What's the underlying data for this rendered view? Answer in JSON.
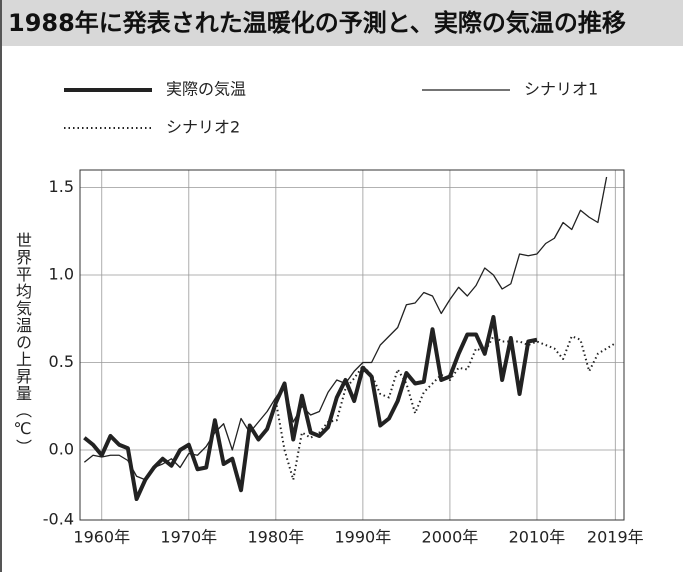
{
  "chart_data": {
    "type": "line",
    "title": "1988年に発表された温暖化の予測と、実際の気温の推移",
    "y_label": "世界平均気温の上昇量（℃）",
    "x": [
      1958,
      1959,
      1960,
      1961,
      1962,
      1963,
      1964,
      1965,
      1966,
      1967,
      1968,
      1969,
      1970,
      1971,
      1972,
      1973,
      1974,
      1975,
      1976,
      1977,
      1978,
      1979,
      1980,
      1981,
      1982,
      1983,
      1984,
      1985,
      1986,
      1987,
      1988,
      1989,
      1990,
      1991,
      1992,
      1993,
      1994,
      1995,
      1996,
      1997,
      1998,
      1999,
      2000,
      2001,
      2002,
      2003,
      2004,
      2005,
      2006,
      2007,
      2008,
      2009,
      2010,
      2011,
      2012,
      2013,
      2014,
      2015,
      2016,
      2017,
      2018,
      2019
    ],
    "series": [
      {
        "name": "実際の気温",
        "color": "#222222",
        "values": [
          0.07,
          0.03,
          -0.03,
          0.08,
          0.03,
          0.01,
          -0.28,
          -0.17,
          -0.1,
          -0.05,
          -0.09,
          0.0,
          0.03,
          -0.11,
          -0.1,
          0.17,
          -0.08,
          -0.05,
          -0.23,
          0.14,
          0.06,
          0.12,
          0.27,
          0.38,
          0.06,
          0.31,
          0.1,
          0.08,
          0.13,
          0.3,
          0.4,
          0.28,
          0.47,
          0.42,
          0.14,
          0.18,
          0.28,
          0.44,
          0.38,
          0.39,
          0.69,
          0.4,
          0.42,
          0.55,
          0.66,
          0.66,
          0.55,
          0.76,
          0.4,
          0.64,
          0.32,
          0.62,
          0.63,
          null,
          null,
          null,
          null,
          null,
          null,
          null,
          null,
          null
        ]
      },
      {
        "name": "シナリオ1",
        "color": "#222222",
        "values": [
          -0.07,
          -0.03,
          -0.04,
          -0.03,
          -0.03,
          -0.06,
          -0.15,
          -0.17,
          -0.1,
          -0.08,
          -0.05,
          -0.1,
          -0.02,
          -0.03,
          0.02,
          0.1,
          0.15,
          0.0,
          0.18,
          0.1,
          0.16,
          0.22,
          0.3,
          0.37,
          0.16,
          0.25,
          0.2,
          0.22,
          0.33,
          0.4,
          0.38,
          0.45,
          0.5,
          0.5,
          0.6,
          0.65,
          0.7,
          0.83,
          0.84,
          0.9,
          0.88,
          0.78,
          0.86,
          0.93,
          0.88,
          0.94,
          1.04,
          1.0,
          0.92,
          0.95,
          1.12,
          1.11,
          1.12,
          1.18,
          1.21,
          1.3,
          1.26,
          1.37,
          1.33,
          1.3,
          1.56,
          null
        ]
      },
      {
        "name": "シナリオ2",
        "color": "#222222",
        "values": [
          null,
          null,
          null,
          null,
          null,
          null,
          null,
          null,
          null,
          null,
          null,
          null,
          null,
          null,
          null,
          null,
          null,
          null,
          null,
          null,
          null,
          null,
          0.28,
          0.0,
          -0.17,
          0.1,
          0.07,
          0.1,
          0.16,
          0.17,
          0.35,
          0.41,
          0.48,
          0.43,
          0.32,
          0.3,
          0.46,
          0.38,
          0.21,
          0.33,
          0.38,
          0.43,
          0.4,
          0.47,
          0.46,
          0.58,
          0.56,
          0.65,
          0.62,
          0.62,
          0.62,
          0.6,
          0.62,
          0.6,
          0.58,
          0.52,
          0.65,
          0.63,
          0.45,
          0.55,
          0.58,
          0.61
        ]
      }
    ],
    "xlim": [
      1957.5,
      2020
    ],
    "xticks": [
      {
        "value": 1960,
        "label": "1960年"
      },
      {
        "value": 1970,
        "label": "1970年"
      },
      {
        "value": 1980,
        "label": "1980年"
      },
      {
        "value": 1990,
        "label": "1990年"
      },
      {
        "value": 2000,
        "label": "2000年"
      },
      {
        "value": 2010,
        "label": "2010年"
      },
      {
        "value": 2019,
        "label": "2019年"
      }
    ],
    "ylim": [
      -0.4,
      1.6
    ],
    "yticks": [
      -0.4,
      {
        "value": 0,
        "label": "0.0"
      },
      0.5,
      {
        "value": 1,
        "label": "1.0"
      },
      1.5
    ],
    "grid": true
  }
}
